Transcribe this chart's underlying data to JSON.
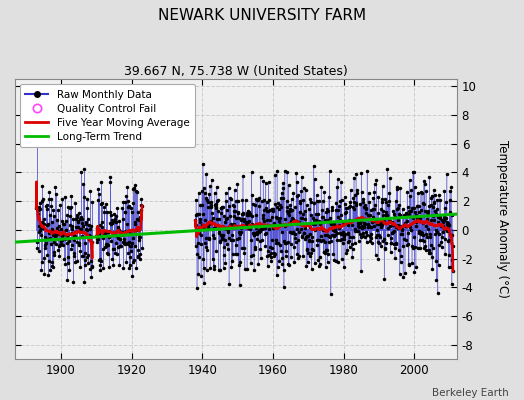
{
  "title": "NEWARK UNIVERSITY FARM",
  "subtitle": "39.667 N, 75.738 W (United States)",
  "ylabel": "Temperature Anomaly (°C)",
  "credit": "Berkeley Earth",
  "xlim": [
    1887,
    2012
  ],
  "ylim": [
    -9,
    10.5
  ],
  "yticks": [
    -8,
    -6,
    -4,
    -2,
    0,
    2,
    4,
    6,
    8,
    10
  ],
  "xticks": [
    1900,
    1920,
    1940,
    1960,
    1980,
    2000
  ],
  "fig_bg": "#e0e0e0",
  "plot_bg": "#f0f0f0",
  "raw_color": "#3333cc",
  "dot_color": "#000000",
  "ma_color": "#dd0000",
  "trend_color": "#00bb00",
  "qc_color": "#ff44ff",
  "grid_color": "#cccccc",
  "seg1_start": 1893,
  "seg1_end": 1909,
  "seg2_start": 1910,
  "seg2_end": 1923,
  "seg3_start": 1938,
  "seg3_end": 2011,
  "trend_x": [
    1887,
    2012
  ],
  "trend_y": [
    -0.85,
    1.1
  ],
  "seed": 137
}
